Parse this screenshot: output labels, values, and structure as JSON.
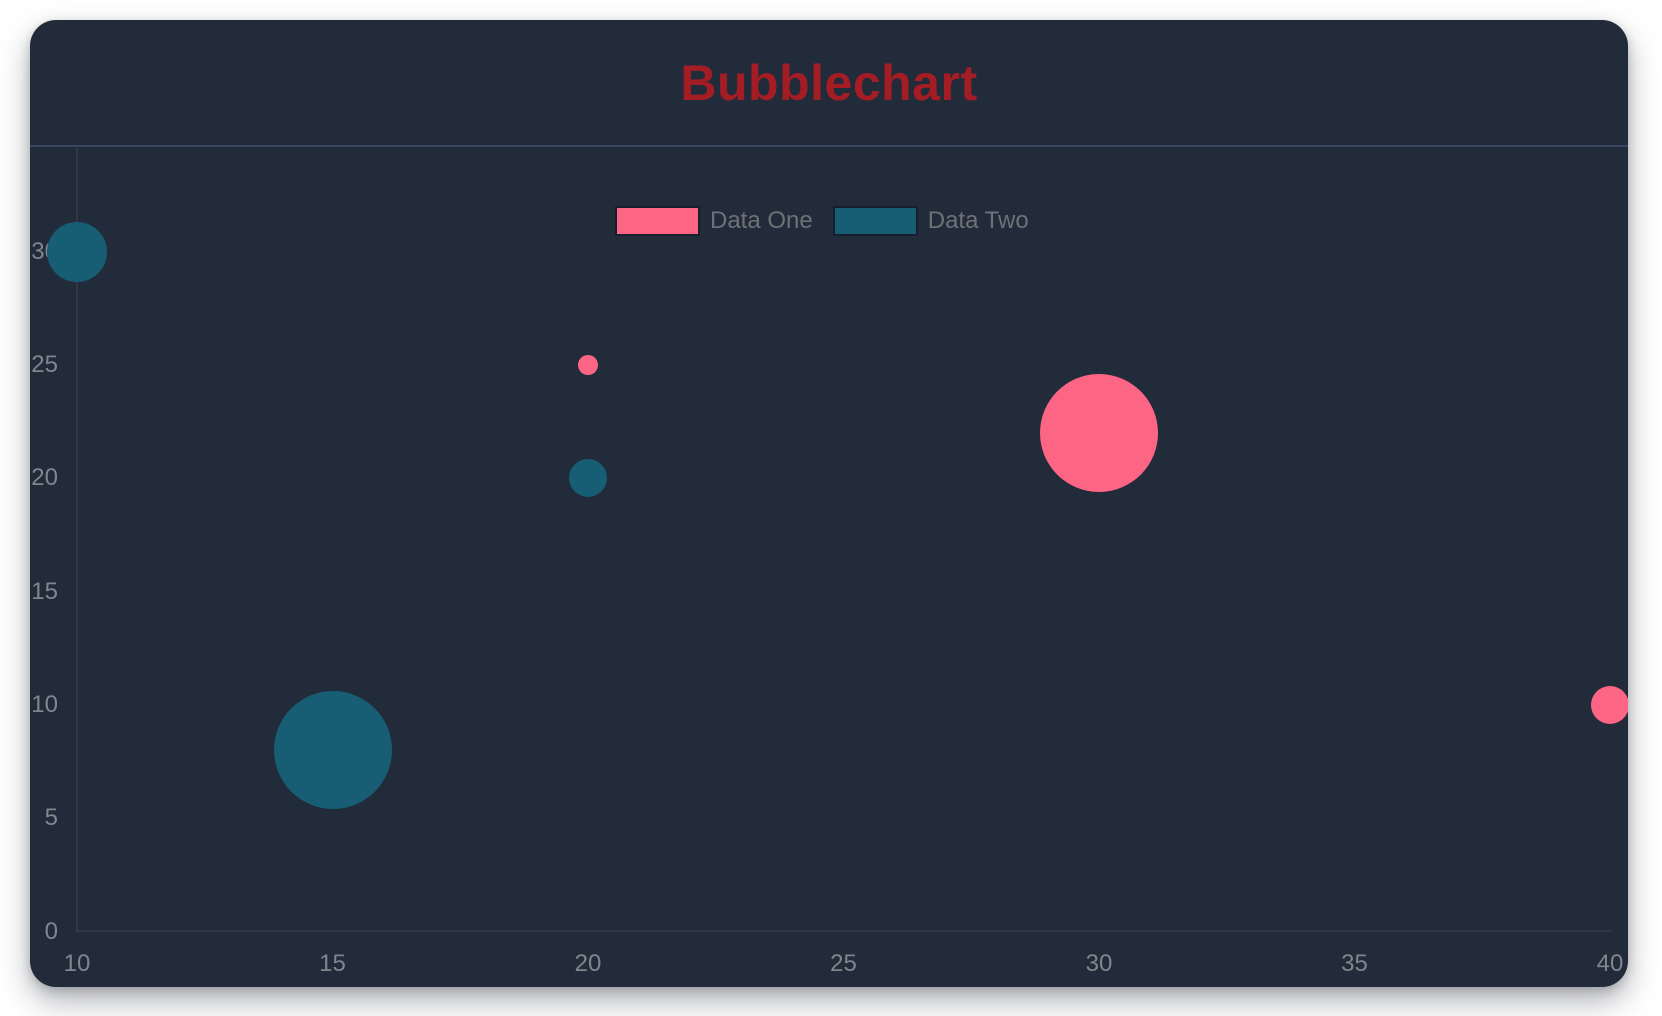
{
  "window": {
    "background": "#ffffff"
  },
  "card": {
    "background": "#222b3a",
    "divider_color": "#3a4563"
  },
  "header": {
    "title": "Bubblechart",
    "title_color": "#a41c24"
  },
  "legend": {
    "text_color": "#6e7177",
    "items": [
      {
        "label": "Data One",
        "color": "#fd6585"
      },
      {
        "label": "Data Two",
        "color": "#175d74"
      }
    ]
  },
  "chart_data": {
    "type": "bubble",
    "title": "Bubblechart",
    "xlabel": "",
    "ylabel": "",
    "xlim": [
      10,
      40
    ],
    "ylim": [
      0,
      30
    ],
    "x_ticks": [
      10,
      15,
      20,
      25,
      30,
      35,
      40
    ],
    "y_ticks": [
      0,
      5,
      10,
      15,
      20,
      25,
      30
    ],
    "grid": false,
    "legend_position": "top-center",
    "tick_color": "#82858c",
    "axis_line_color": "#2e3848",
    "series": [
      {
        "name": "Data One",
        "color": "#fd6585",
        "points": [
          {
            "x": 20,
            "y": 25,
            "r": 10
          },
          {
            "x": 30,
            "y": 22,
            "r": 59
          },
          {
            "x": 40,
            "y": 10,
            "r": 19
          }
        ]
      },
      {
        "name": "Data Two",
        "color": "#175d74",
        "points": [
          {
            "x": 10,
            "y": 30,
            "r": 30
          },
          {
            "x": 20,
            "y": 20,
            "r": 19
          },
          {
            "x": 15,
            "y": 8,
            "r": 59
          }
        ]
      }
    ]
  }
}
